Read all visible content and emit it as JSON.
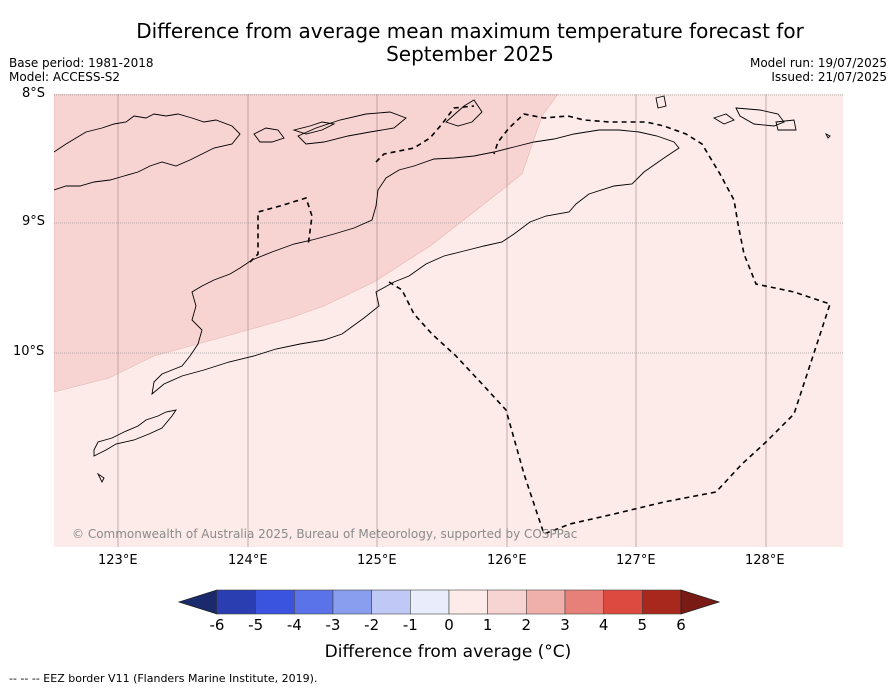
{
  "title_line1": "Difference from average mean maximum temperature forecast for",
  "title_line2": "September 2025",
  "base_period": "Base period: 1981-2018",
  "model": "Model: ACCESS-S2",
  "model_run": "Model run: 19/07/2025",
  "issued": "Issued: 21/07/2025",
  "lat_labels": [
    "8°S",
    "9°S",
    "10°S"
  ],
  "lon_labels": [
    "123°E",
    "124°E",
    "125°E",
    "126°E",
    "127°E",
    "128°E"
  ],
  "copyright": "© Commonwealth of Australia 2025, Bureau of Meteorology, supported by COSPPac",
  "colorbar": {
    "ticks": [
      "-6",
      "-5",
      "-4",
      "-3",
      "-2",
      "-1",
      "0",
      "1",
      "2",
      "3",
      "4",
      "5",
      "6"
    ],
    "colors": [
      "#1a2a6c",
      "#2a3eb1",
      "#3a54e0",
      "#5a73e8",
      "#8a9ef0",
      "#c0c8f5",
      "#e8ecfb",
      "#fcebe9",
      "#f7d4d2",
      "#f0b0aa",
      "#e8807a",
      "#dd4b40",
      "#a8281e",
      "#7a1a14"
    ],
    "label": "Difference from average (°C)"
  },
  "map_fill": {
    "zone_0_1": "#fcebe9",
    "zone_1_2": "#f7d4d2"
  },
  "legend_footer": "--  --  -- EEZ border V11 (Flanders Marine Institute, 2019)."
}
